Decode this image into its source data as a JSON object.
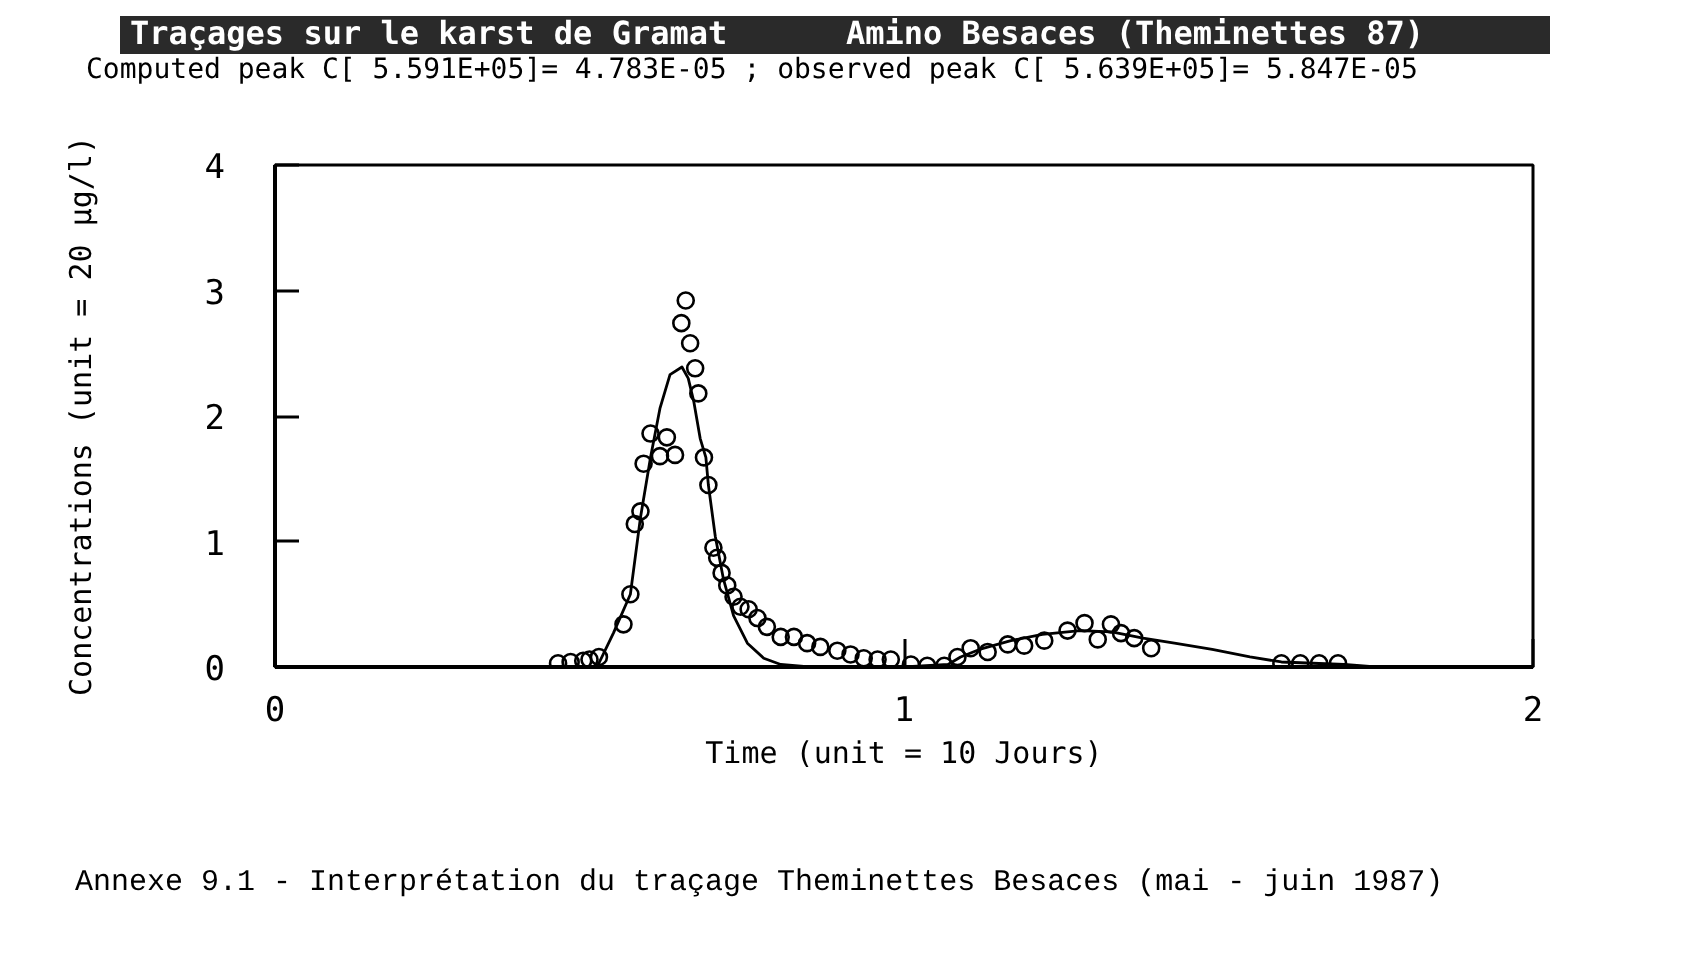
{
  "chart_data": {
    "type": "line",
    "title": "Traçages sur le karst de Gramat",
    "subtitle": "Computed peak C[ 5.591E+05]= 4.783E-05 ; observed peak C[ 5.639E+05]= 5.847E-05",
    "xlabel": "Time (unit = 10 Jours)",
    "ylabel": "Concentrations (unit = 20 µg/l)",
    "annotations": [
      "Amino Besaces (Theminettes 87)",
      "Annexe  9.1 - Interprétation du traçage Theminettes Besaces (mai - juin 1987)"
    ],
    "xlim": [
      0,
      2
    ],
    "xticks": [
      0,
      1,
      2
    ],
    "ylim": [
      0,
      4
    ],
    "yticks": [
      0,
      1,
      2,
      3,
      4
    ],
    "series": [
      {
        "type": "scatter",
        "color": "#000000",
        "marker": "circle",
        "x": [
          0.45,
          0.47,
          0.49,
          0.5,
          0.515,
          0.554,
          0.565,
          0.572,
          0.581,
          0.586,
          0.597,
          0.612,
          0.623,
          0.636,
          0.646,
          0.653,
          0.66,
          0.668,
          0.673,
          0.682,
          0.689,
          0.697,
          0.703,
          0.71,
          0.719,
          0.729,
          0.74,
          0.753,
          0.767,
          0.782,
          0.804,
          0.825,
          0.846,
          0.867,
          0.894,
          0.915,
          0.936,
          0.958,
          0.979,
          1.011,
          1.037,
          1.064,
          1.085,
          1.106,
          1.133,
          1.165,
          1.191,
          1.223,
          1.26,
          1.287,
          1.308,
          1.329,
          1.345,
          1.366,
          1.393,
          1.6,
          1.63,
          1.66,
          1.69
        ],
        "values": [
          0.03,
          0.04,
          0.05,
          0.06,
          0.08,
          0.34,
          0.58,
          1.14,
          1.24,
          1.62,
          1.86,
          1.68,
          1.83,
          1.69,
          2.74,
          2.92,
          2.58,
          2.38,
          2.18,
          1.67,
          1.45,
          0.95,
          0.87,
          0.75,
          0.65,
          0.56,
          0.48,
          0.46,
          0.39,
          0.32,
          0.24,
          0.24,
          0.19,
          0.16,
          0.13,
          0.1,
          0.07,
          0.06,
          0.06,
          0.02,
          0.01,
          0.01,
          0.08,
          0.15,
          0.12,
          0.18,
          0.17,
          0.21,
          0.29,
          0.35,
          0.22,
          0.34,
          0.27,
          0.23,
          0.15,
          0.03,
          0.03,
          0.03,
          0.03
        ]
      },
      {
        "color": "#000000",
        "line_style": "solid",
        "x": [
          0.45,
          0.512,
          0.538,
          0.565,
          0.581,
          0.597,
          0.612,
          0.628,
          0.647,
          0.657,
          0.666,
          0.676,
          0.685,
          0.689,
          0.7,
          0.713,
          0.729,
          0.751,
          0.777,
          0.804,
          0.85,
          1.0,
          1.07,
          1.09,
          1.12,
          1.17,
          1.22,
          1.28,
          1.33,
          1.38,
          1.43,
          1.49,
          1.55,
          1.6,
          1.7,
          1.75
        ],
        "values": [
          0.0,
          0.0,
          0.27,
          0.58,
          1.19,
          1.67,
          2.06,
          2.33,
          2.39,
          2.3,
          2.11,
          1.82,
          1.67,
          1.45,
          1.04,
          0.7,
          0.41,
          0.19,
          0.07,
          0.02,
          0.0,
          0.0,
          0.02,
          0.08,
          0.14,
          0.21,
          0.26,
          0.29,
          0.28,
          0.23,
          0.19,
          0.14,
          0.08,
          0.04,
          0.02,
          0.0
        ]
      }
    ]
  }
}
